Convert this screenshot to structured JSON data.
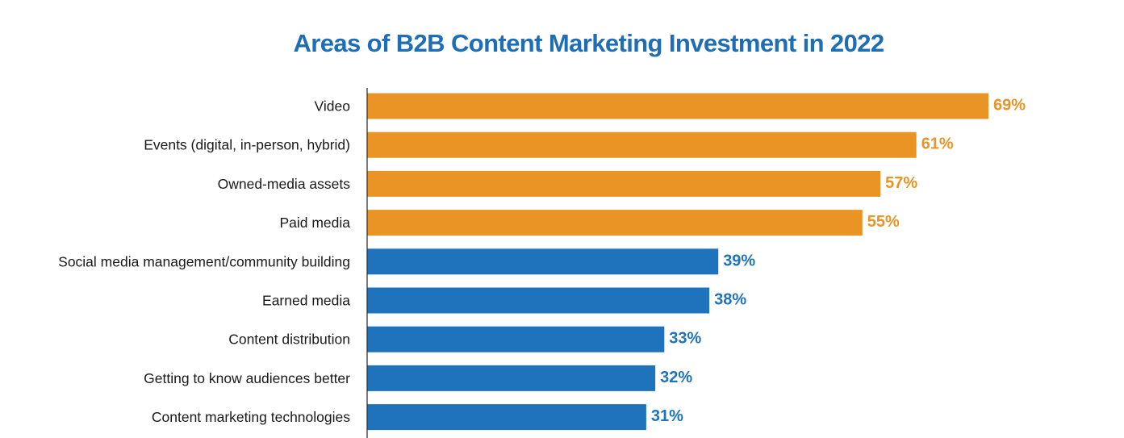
{
  "colors": {
    "title": "#1e6db7",
    "highlight": "#e99424",
    "base": "#1f73bd",
    "axis": "#333333"
  },
  "chart_data": {
    "type": "bar",
    "orientation": "horizontal",
    "title": "Areas of B2B Content Marketing Investment in 2022",
    "xlabel": "",
    "ylabel": "",
    "xlim": [
      0,
      69
    ],
    "value_suffix": "%",
    "grid": false,
    "legend": "none",
    "categories": [
      "Video",
      "Events (digital, in-person, hybrid)",
      "Owned-media assets",
      "Paid media",
      "Social media management/community building",
      "Earned media",
      "Content distribution",
      "Getting to know audiences better",
      "Content marketing technologies"
    ],
    "values": [
      69,
      61,
      57,
      55,
      39,
      38,
      33,
      32,
      31
    ],
    "value_labels": [
      "69%",
      "61%",
      "57%",
      "55%",
      "39%",
      "38%",
      "33%",
      "32%",
      "31%"
    ],
    "highlighted": [
      true,
      true,
      true,
      true,
      false,
      false,
      false,
      false,
      false
    ]
  }
}
